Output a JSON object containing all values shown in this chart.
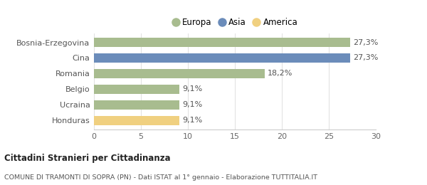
{
  "categories": [
    "Bosnia-Erzegovina",
    "Cina",
    "Romania",
    "Belgio",
    "Ucraina",
    "Honduras"
  ],
  "values": [
    27.3,
    27.3,
    18.2,
    9.1,
    9.1,
    9.1
  ],
  "labels": [
    "27,3%",
    "27,3%",
    "18,2%",
    "9,1%",
    "9,1%",
    "9,1%"
  ],
  "colors": [
    "#a8bc8f",
    "#6b8cba",
    "#a8bc8f",
    "#a8bc8f",
    "#a8bc8f",
    "#f0d080"
  ],
  "legend": [
    {
      "label": "Europa",
      "color": "#a8bc8f"
    },
    {
      "label": "Asia",
      "color": "#6b8cba"
    },
    {
      "label": "America",
      "color": "#f0d080"
    }
  ],
  "xlim": [
    0,
    30
  ],
  "xticks": [
    0,
    5,
    10,
    15,
    20,
    25,
    30
  ],
  "title_bold": "Cittadini Stranieri per Cittadinanza",
  "subtitle": "COMUNE DI TRAMONTI DI SOPRA (PN) - Dati ISTAT al 1° gennaio - Elaborazione TUTTITALIA.IT",
  "bg_color": "#ffffff",
  "bar_height": 0.6,
  "label_fontsize": 8,
  "tick_fontsize": 8,
  "legend_fontsize": 8.5
}
